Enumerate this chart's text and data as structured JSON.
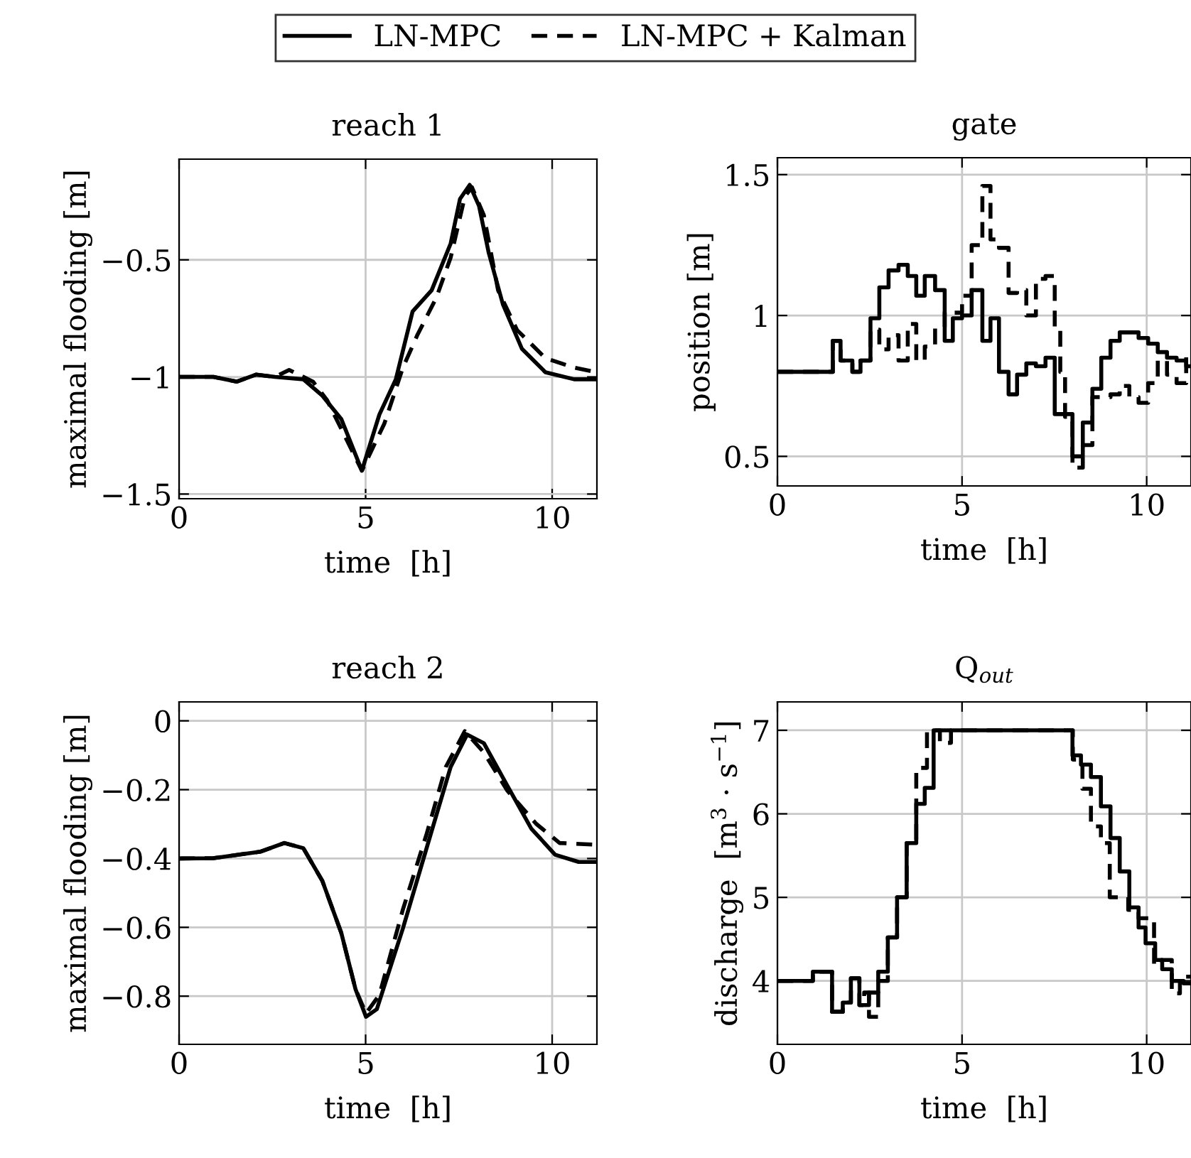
{
  "chart_data": [
    {
      "type": "line",
      "title": "reach 1",
      "xlabel": "time  [h]",
      "ylabel": "maximal flooding [m]",
      "xlim": [
        0,
        11.2
      ],
      "xticks": [
        0,
        5,
        10
      ],
      "ylim": [
        -1.52,
        -0.07
      ],
      "yticks": [
        {
          "value": -1.5,
          "label": "−1.5"
        },
        {
          "value": -1,
          "label": "−1"
        },
        {
          "value": -0.5,
          "label": "−0.5"
        }
      ],
      "grid": true,
      "legend": "top",
      "series": [
        {
          "name": "LN-MPC",
          "color": "#000000",
          "line_style": "solid",
          "x": [
            0,
            0.92,
            1.55,
            2.06,
            2.57,
            3.33,
            3.84,
            4.35,
            4.9,
            5.37,
            5.81,
            6.26,
            6.77,
            7.28,
            7.53,
            7.79,
            8.04,
            8.3,
            8.68,
            9.19,
            9.82,
            10.59,
            11.2
          ],
          "values": [
            -1.0,
            -1.0,
            -1.02,
            -0.99,
            -1.0,
            -1.01,
            -1.08,
            -1.18,
            -1.4,
            -1.16,
            -1.01,
            -0.72,
            -0.63,
            -0.43,
            -0.24,
            -0.18,
            -0.27,
            -0.47,
            -0.69,
            -0.88,
            -0.98,
            -1.01,
            -1.01
          ]
        },
        {
          "name": "LN-MPC + Kalman",
          "color": "#000000",
          "line_style": "dashed",
          "x": [
            0,
            0.92,
            1.55,
            2.06,
            2.57,
            2.95,
            3.59,
            3.97,
            4.9,
            5.5,
            6.0,
            6.39,
            6.9,
            7.28,
            7.66,
            7.85,
            8.17,
            8.55,
            9.06,
            9.82,
            10.59,
            11.2
          ],
          "values": [
            -1.0,
            -1.0,
            -1.02,
            -0.99,
            -1.0,
            -0.97,
            -1.02,
            -1.1,
            -1.4,
            -1.2,
            -0.96,
            -0.82,
            -0.66,
            -0.49,
            -0.23,
            -0.19,
            -0.31,
            -0.63,
            -0.8,
            -0.92,
            -0.96,
            -0.98
          ]
        }
      ]
    },
    {
      "type": "step",
      "title": "gate",
      "xlabel": "time  [h]",
      "ylabel": "position [m]",
      "xlim": [
        0,
        11.2
      ],
      "xticks": [
        0,
        5,
        10
      ],
      "ylim": [
        0.395,
        1.56
      ],
      "yticks": [
        0.5,
        1,
        1.5
      ],
      "grid": true,
      "series": [
        {
          "color": "#000000",
          "line_style": "solid",
          "x": [
            0,
            1.5,
            1.71,
            2.03,
            2.25,
            2.52,
            2.76,
            3.01,
            3.28,
            3.53,
            3.76,
            3.99,
            4.27,
            4.53,
            4.75,
            5.0,
            5.26,
            5.55,
            5.77,
            6.0,
            6.26,
            6.49,
            6.74,
            7.0,
            7.26,
            7.51,
            7.99,
            8.27,
            8.53,
            8.77,
            9.02,
            9.27,
            9.53,
            9.78,
            10.04,
            10.3,
            10.55,
            10.81,
            11.07,
            11.2
          ],
          "values": [
            0.8,
            0.91,
            0.84,
            0.8,
            0.84,
            0.99,
            1.1,
            1.16,
            1.18,
            1.14,
            1.07,
            1.14,
            1.09,
            0.91,
            0.99,
            1.0,
            1.09,
            0.91,
            0.99,
            0.8,
            0.72,
            0.79,
            0.83,
            0.82,
            0.85,
            0.65,
            0.5,
            0.62,
            0.74,
            0.85,
            0.91,
            0.94,
            0.94,
            0.92,
            0.9,
            0.87,
            0.85,
            0.84,
            0.82,
            0.82
          ]
        },
        {
          "color": "#000000",
          "line_style": "dashed",
          "x": [
            0,
            1.5,
            1.71,
            2.03,
            2.25,
            2.52,
            2.76,
            3.01,
            3.28,
            3.53,
            3.76,
            3.99,
            4.27,
            4.53,
            5.0,
            5.26,
            5.55,
            5.77,
            6.0,
            6.26,
            6.49,
            6.74,
            7.0,
            7.26,
            7.51,
            7.66,
            7.79,
            7.99,
            8.27,
            8.53,
            8.77,
            9.02,
            9.27,
            9.53,
            9.78,
            10.04,
            10.3,
            10.55,
            10.81,
            11.07,
            11.2
          ],
          "values": [
            0.8,
            0.91,
            0.84,
            0.8,
            0.84,
            0.95,
            0.88,
            0.93,
            0.84,
            0.97,
            0.84,
            0.89,
            0.96,
            1.01,
            1.07,
            1.25,
            1.46,
            1.27,
            1.24,
            1.08,
            1.09,
            1.0,
            1.13,
            1.14,
            0.95,
            0.8,
            0.64,
            0.46,
            0.54,
            0.71,
            0.71,
            0.72,
            0.75,
            0.71,
            0.69,
            0.76,
            0.84,
            0.79,
            0.76,
            0.87,
            0.87
          ]
        }
      ]
    },
    {
      "type": "line",
      "title": "reach 2",
      "xlabel": "time  [h]",
      "ylabel": "maximal flooding [m]",
      "xlim": [
        0,
        11.2
      ],
      "xticks": [
        0,
        5,
        10
      ],
      "ylim": [
        -0.94,
        0.055
      ],
      "yticks": [
        {
          "value": -0.8,
          "label": "−0.8"
        },
        {
          "value": -0.6,
          "label": "−0.6"
        },
        {
          "value": -0.4,
          "label": "−0.4"
        },
        {
          "value": -0.2,
          "label": "−0.2"
        },
        0
      ],
      "grid": true,
      "series": [
        {
          "color": "#000000",
          "line_style": "solid",
          "x": [
            0,
            0.92,
            2.19,
            2.82,
            3.33,
            3.84,
            4.35,
            4.73,
            5.01,
            5.3,
            6.0,
            6.64,
            7.28,
            7.72,
            8.17,
            8.8,
            9.44,
            10.08,
            10.71,
            11.2
          ],
          "values": [
            -0.4,
            -0.399,
            -0.38,
            -0.355,
            -0.37,
            -0.465,
            -0.617,
            -0.78,
            -0.86,
            -0.838,
            -0.603,
            -0.368,
            -0.134,
            -0.04,
            -0.065,
            -0.189,
            -0.313,
            -0.389,
            -0.41,
            -0.41
          ]
        },
        {
          "color": "#000000",
          "line_style": "dashed",
          "x": [
            0,
            0.92,
            2.19,
            2.82,
            3.33,
            3.84,
            4.35,
            4.73,
            5.01,
            5.37,
            6.0,
            6.64,
            7.15,
            7.66,
            8.17,
            8.8,
            9.57,
            10.2,
            11.2
          ],
          "values": [
            -0.4,
            -0.399,
            -0.38,
            -0.355,
            -0.37,
            -0.465,
            -0.617,
            -0.78,
            -0.85,
            -0.796,
            -0.548,
            -0.327,
            -0.134,
            -0.03,
            -0.092,
            -0.203,
            -0.299,
            -0.355,
            -0.36
          ]
        }
      ]
    },
    {
      "type": "step",
      "title": "Q$_{out}$",
      "xlabel": "time  [h]",
      "ylabel": "discharge  [m$^{3}$ · s$^{−1}$]",
      "xlim": [
        0,
        11.2
      ],
      "xticks": [
        0,
        5,
        10
      ],
      "ylim": [
        3.24,
        7.34
      ],
      "yticks": [
        4,
        5,
        6,
        7
      ],
      "grid": true,
      "series": [
        {
          "color": "#000000",
          "line_style": "solid",
          "x": [
            0,
            0.96,
            1.48,
            1.77,
            1.99,
            2.22,
            2.48,
            2.73,
            2.99,
            3.24,
            3.5,
            3.76,
            3.99,
            4.23,
            7.99,
            8.22,
            8.49,
            8.76,
            9.02,
            9.27,
            9.53,
            9.78,
            9.97,
            10.23,
            10.42,
            10.68,
            11.0,
            11.2
          ],
          "values": [
            4.0,
            4.11,
            3.63,
            3.74,
            4.03,
            3.71,
            3.86,
            4.11,
            4.52,
            5.0,
            5.65,
            6.12,
            6.31,
            7.0,
            6.7,
            6.59,
            6.44,
            6.09,
            5.71,
            5.31,
            4.88,
            4.64,
            4.45,
            4.25,
            4.14,
            4.0,
            3.97,
            3.97
          ]
        },
        {
          "color": "#000000",
          "line_style": "dashed",
          "x": [
            0,
            0.96,
            1.48,
            1.77,
            1.99,
            2.22,
            2.35,
            2.48,
            2.73,
            2.99,
            3.24,
            3.5,
            3.76,
            4.05,
            4.4,
            4.7,
            7.8,
            8.0,
            8.26,
            8.49,
            8.76,
            9.0,
            9.5,
            9.78,
            10.2,
            10.4,
            10.68,
            10.9,
            11.2
          ],
          "values": [
            4.0,
            4.11,
            3.63,
            3.74,
            4.03,
            3.71,
            3.86,
            3.57,
            4.0,
            4.52,
            5.0,
            5.65,
            6.55,
            7.0,
            6.85,
            7.0,
            7.0,
            6.65,
            6.3,
            5.85,
            5.65,
            5.0,
            4.85,
            4.75,
            4.2,
            4.25,
            3.85,
            4.05,
            4.05
          ]
        }
      ]
    }
  ]
}
